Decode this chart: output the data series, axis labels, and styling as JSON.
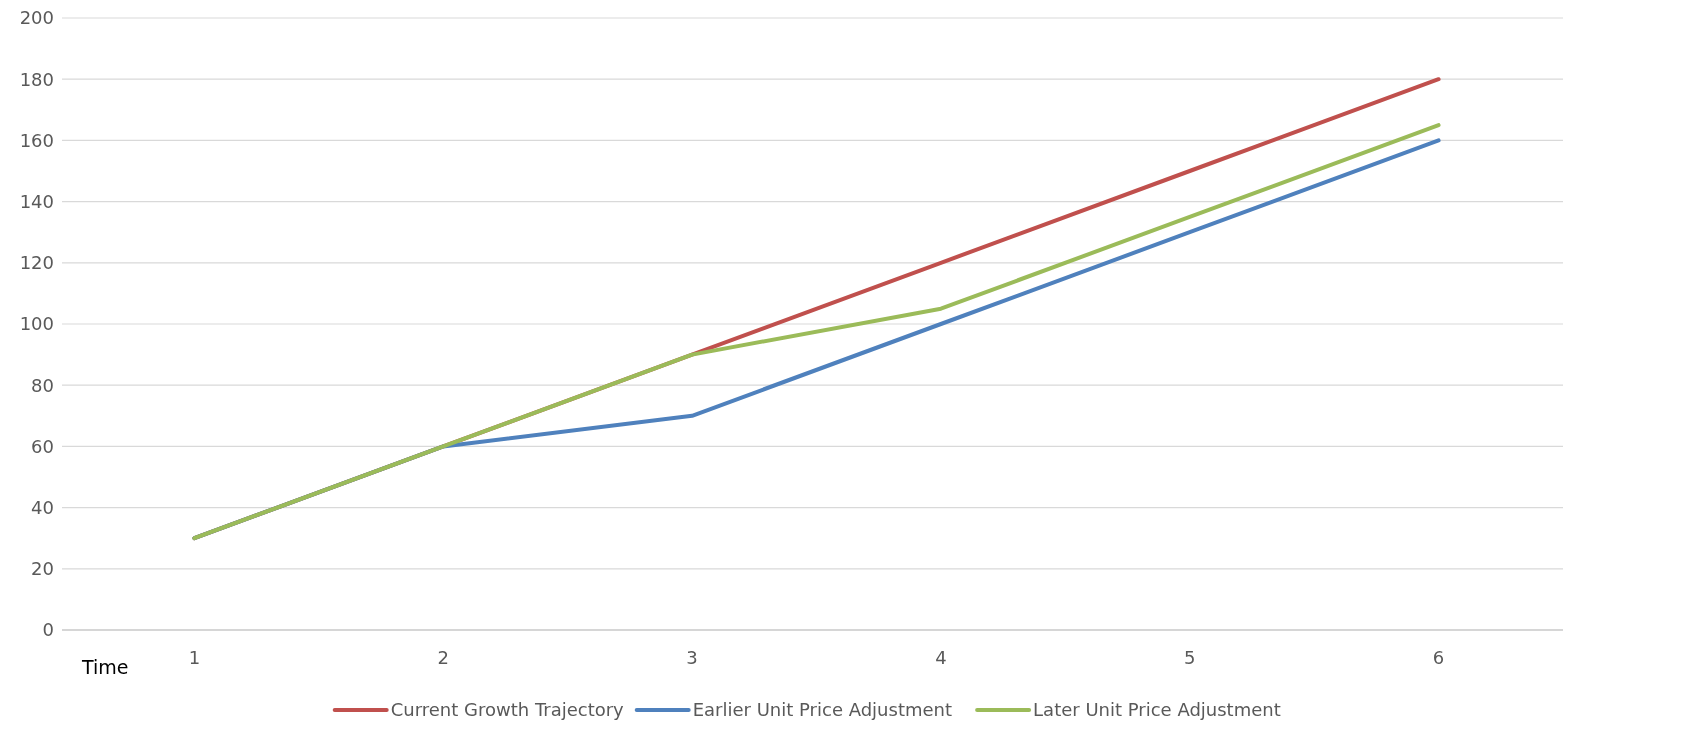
{
  "chart_data": {
    "type": "line",
    "xlabel": "Time",
    "categories": [
      "1",
      "2",
      "3",
      "4",
      "5",
      "6"
    ],
    "series": [
      {
        "name": "Current Growth Trajectory",
        "color": "#c0504d",
        "values": [
          30,
          60,
          90,
          120,
          150,
          180
        ]
      },
      {
        "name": "Earlier Unit Price Adjustment",
        "color": "#4f81bd",
        "values": [
          30,
          60,
          70,
          100,
          130,
          160
        ]
      },
      {
        "name": "Later Unit Price Adjustment",
        "color": "#9bbb59",
        "values": [
          30,
          60,
          90,
          105,
          135,
          165
        ]
      }
    ],
    "ylim": [
      0,
      200
    ],
    "yticks": [
      0,
      20,
      40,
      60,
      80,
      100,
      120,
      140,
      160,
      180,
      200
    ],
    "grid": "y",
    "legend": "bottom",
    "marker": "none",
    "line_style": "solid"
  }
}
